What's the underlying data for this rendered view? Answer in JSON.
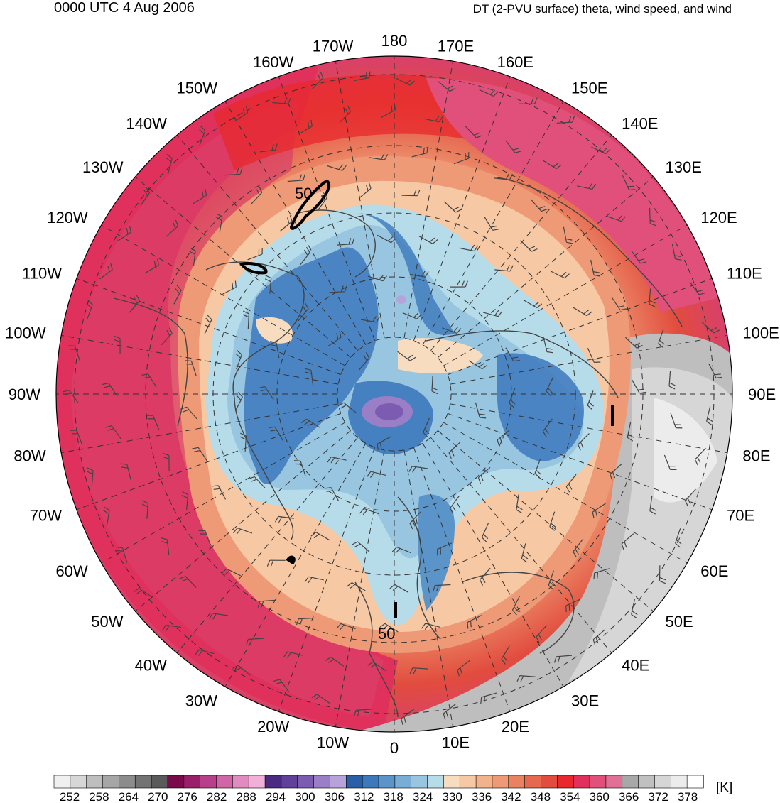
{
  "header": {
    "valid_time": "0000 UTC 4 Aug 2006",
    "field_description": "DT (2-PVU surface) theta, wind speed, and wind"
  },
  "map": {
    "projection": "north polar stereographic",
    "longitude_labels": [
      "180",
      "170E",
      "160E",
      "150E",
      "140E",
      "130E",
      "120E",
      "110E",
      "100E",
      "90E",
      "80E",
      "70E",
      "60E",
      "50E",
      "40E",
      "30E",
      "20E",
      "10E",
      "0",
      "10W",
      "20W",
      "30W",
      "40W",
      "50W",
      "60W",
      "70W",
      "80W",
      "90W",
      "100W",
      "110W",
      "120W",
      "130W",
      "140W",
      "150W",
      "160W",
      "170W"
    ],
    "wind_speed_contour_labels": [
      "50",
      "50"
    ]
  },
  "colorbar": {
    "unit": "[K]",
    "tick_labels": [
      "252",
      "258",
      "264",
      "270",
      "276",
      "282",
      "288",
      "294",
      "300",
      "306",
      "312",
      "318",
      "324",
      "330",
      "336",
      "342",
      "348",
      "354",
      "360",
      "366",
      "372",
      "378"
    ],
    "colors": [
      "#f0f0f0",
      "#d7d7d7",
      "#bebebe",
      "#a6a6a6",
      "#8c8c8c",
      "#737373",
      "#5a5a5a",
      "#7a0a4a",
      "#9a1e6a",
      "#b8408a",
      "#d066a6",
      "#e08cc0",
      "#f0b0d8",
      "#4b2a82",
      "#60409a",
      "#7c5cb0",
      "#9a7ec6",
      "#b8a2da",
      "#2a5fa8",
      "#3c78bc",
      "#5a94c8",
      "#78aed6",
      "#98c6e0",
      "#b6dcea",
      "#f8dcc0",
      "#f6c8a4",
      "#f2b28c",
      "#ee9a76",
      "#ea8262",
      "#e6684e",
      "#e24c3e",
      "#e8282c",
      "#e0305c",
      "#e0507a",
      "#e07096",
      "#a8a8a8",
      "#c0c0c0",
      "#d6d6d6",
      "#ececec",
      "#ffffff"
    ]
  }
}
